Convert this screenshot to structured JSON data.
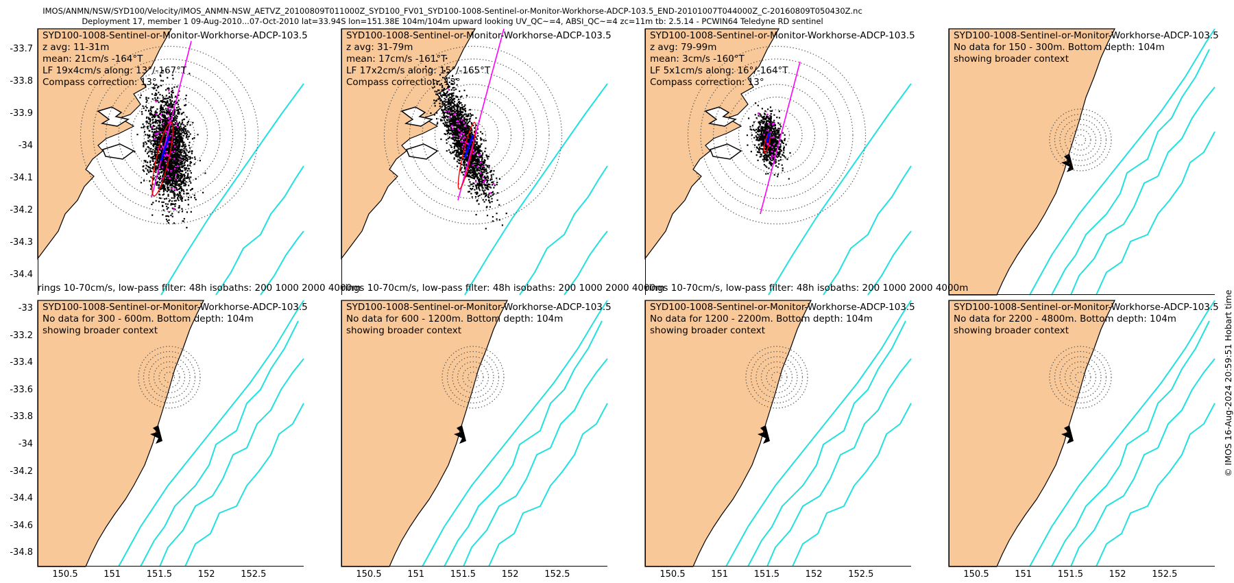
{
  "header": {
    "file_path": "IMOS/ANMN/NSW/SYD100/Velocity/IMOS_ANMN-NSW_AETVZ_20100809T011000Z_SYD100_FV01_SYD100-1008-Sentinel-or-Monitor-Workhorse-ADCP-103.5_END-20101007T044000Z_C-20160809T050430Z.nc",
    "deployment_info": "Deployment 17, member 1 09-Aug-2010...07-Oct-2010 lat=33.94S lon=151.38E 104m/104m upward looking UV_QC~=4, ABSI_QC~=4 zc=11m tb: 2.5.14 - PCWIN64 Teledyne RD sentinel"
  },
  "colors": {
    "land": "#f9c898",
    "isobath": "#22e0e0",
    "rings": "#555555",
    "scatter": "#000000",
    "axis_line": "#ff00ff",
    "ellipse": "#ff0000",
    "mean_arrow": "#0000ff"
  },
  "panels": [
    {
      "lines": [
        "SYD100-1008-Sentinel-or-Monitor-Workhorse-ADCP-103.5",
        "z avg: 11-31m",
        "mean: 21cm/s -164°T",
        "LF 19x4cm/s along: 13°/-167°T",
        "Compass correction: 13°"
      ]
    },
    {
      "lines": [
        "SYD100-1008-Sentinel-or-Monitor-Workhorse-ADCP-103.5",
        "z avg: 31-79m",
        "mean: 17cm/s -161°T",
        "LF 17x2cm/s along: 15°/-165°T",
        "Compass correction: 13°"
      ]
    },
    {
      "lines": [
        "SYD100-1008-Sentinel-or-Monitor-Workhorse-ADCP-103.5",
        "z avg: 79-99m",
        "mean: 3cm/s -160°T",
        "LF 5x1cm/s along: 16°/-164°T",
        "Compass correction: 13°"
      ]
    },
    {
      "lines": [
        "SYD100-1008-Sentinel-or-Monitor-Workhorse-ADCP-103.5",
        "No data for 150 - 300m. Bottom depth: 104m",
        "showing broader context"
      ]
    },
    {
      "lines": [
        "SYD100-1008-Sentinel-or-Monitor-Workhorse-ADCP-103.5",
        "No data for 300 - 600m. Bottom depth: 104m",
        "showing broader context"
      ]
    },
    {
      "lines": [
        "SYD100-1008-Sentinel-or-Monitor-Workhorse-ADCP-103.5",
        "No data for 600 - 1200m. Bottom depth: 104m",
        "showing broader context"
      ]
    },
    {
      "lines": [
        "SYD100-1008-Sentinel-or-Monitor-Workhorse-ADCP-103.5",
        "No data for 1200 - 2200m. Bottom depth: 104m",
        "showing broader context"
      ]
    },
    {
      "lines": [
        "SYD100-1008-Sentinel-or-Monitor-Workhorse-ADCP-103.5",
        "No data for 2200 - 4800m. Bottom depth: 104m",
        "showing broader context"
      ]
    }
  ],
  "caption": "rings 10-70cm/s, low-pass filter: 48h isobaths: 200 1000 2000 4000m",
  "y_axis_top": [
    "-33.7",
    "-33.8",
    "-33.9",
    "-34",
    "-34.1",
    "-34.2",
    "-34.3",
    "-34.4"
  ],
  "y_axis_bottom": [
    "-33",
    "-33.2",
    "-33.4",
    "-33.6",
    "-33.8",
    "-34",
    "-34.2",
    "-34.4",
    "-34.6",
    "-34.8"
  ],
  "x_axis": [
    "150.5",
    "151",
    "151.5",
    "152",
    "152.5"
  ],
  "side_note": "© IMOS 16-Aug-2024 20:59:51 Hobart time"
}
